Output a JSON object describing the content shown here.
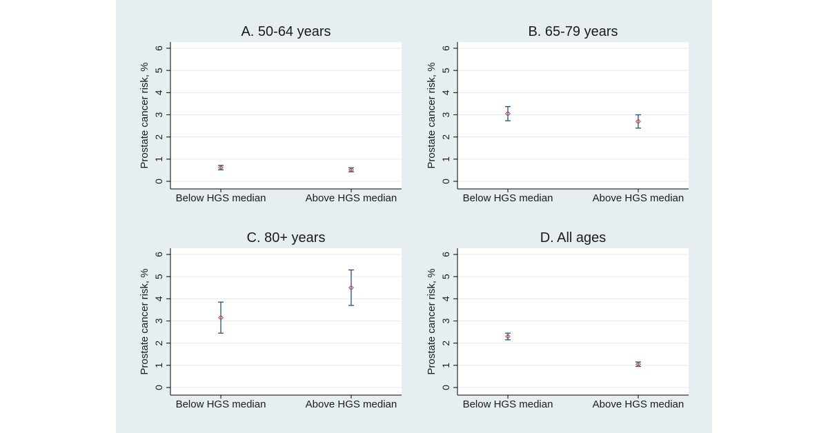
{
  "figure": {
    "background": "#e6eef2",
    "plot_background": "#ffffff",
    "marker_color": "#c0504d",
    "errorbar_color": "#1f4e79"
  },
  "chart_data": [
    {
      "type": "scatter",
      "title": "A. 50-64 years",
      "ylabel": "Prostate cancer risk, %",
      "xlabel": "",
      "ylim": [
        0,
        6
      ],
      "yticks": [
        0,
        1,
        2,
        3,
        4,
        5,
        6
      ],
      "grid": true,
      "categories": [
        "Below HGS median",
        "Above HGS median"
      ],
      "values": [
        0.62,
        0.52
      ],
      "ci_low": [
        0.52,
        0.43
      ],
      "ci_high": [
        0.72,
        0.61
      ]
    },
    {
      "type": "scatter",
      "title": "B. 65-79 years",
      "ylabel": "Prostate cancer risk, %",
      "xlabel": "",
      "ylim": [
        0,
        6
      ],
      "yticks": [
        0,
        1,
        2,
        3,
        4,
        5,
        6
      ],
      "grid": true,
      "categories": [
        "Below HGS median",
        "Above HGS median"
      ],
      "values": [
        3.05,
        2.7
      ],
      "ci_low": [
        2.73,
        2.4
      ],
      "ci_high": [
        3.37,
        3.0
      ]
    },
    {
      "type": "scatter",
      "title": "C. 80+ years",
      "ylabel": "Prostate cancer risk, %",
      "xlabel": "",
      "ylim": [
        0,
        6
      ],
      "yticks": [
        0,
        1,
        2,
        3,
        4,
        5,
        6
      ],
      "grid": true,
      "categories": [
        "Below HGS median",
        "Above HGS median"
      ],
      "values": [
        3.15,
        4.5
      ],
      "ci_low": [
        2.45,
        3.7
      ],
      "ci_high": [
        3.85,
        5.3
      ]
    },
    {
      "type": "scatter",
      "title": "D. All ages",
      "ylabel": "Prostate cancer risk, %",
      "xlabel": "",
      "ylim": [
        0,
        6
      ],
      "yticks": [
        0,
        1,
        2,
        3,
        4,
        5,
        6
      ],
      "grid": true,
      "categories": [
        "Below HGS median",
        "Above HGS median"
      ],
      "values": [
        2.3,
        1.05
      ],
      "ci_low": [
        2.15,
        0.95
      ],
      "ci_high": [
        2.45,
        1.15
      ]
    }
  ]
}
